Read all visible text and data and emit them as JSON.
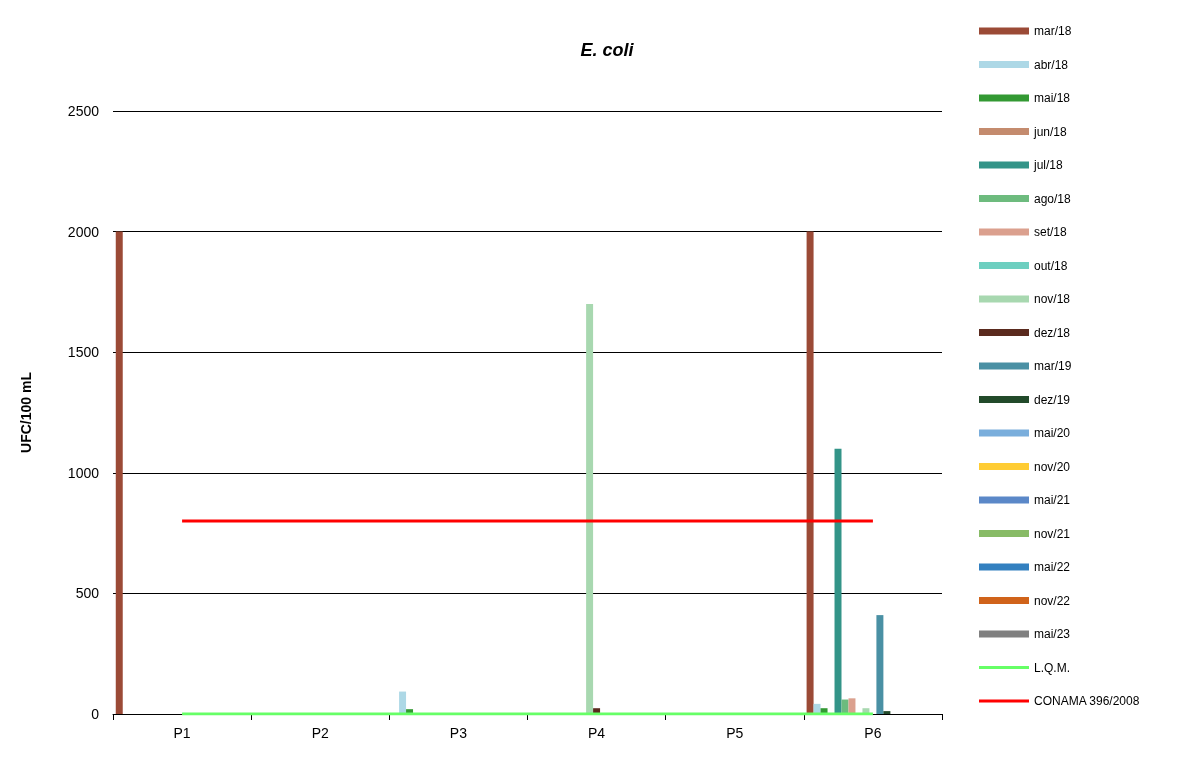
{
  "chart_data": {
    "type": "bar",
    "title": "E. coli",
    "ylabel": "UFC/100 mL",
    "categories": [
      "P1",
      "P2",
      "P3",
      "P4",
      "P5",
      "P6"
    ],
    "ylim": [
      0,
      2500
    ],
    "yticks": [
      0,
      500,
      1000,
      1500,
      2000,
      2500
    ],
    "grid": "y",
    "legend": "right",
    "series": [
      {
        "name": "mar/18",
        "color": "#9b4a36",
        "values": [
          2000,
          null,
          null,
          null,
          null,
          2000
        ]
      },
      {
        "name": "abr/18",
        "color": "#add8e6",
        "values": [
          null,
          null,
          93,
          null,
          null,
          42
        ]
      },
      {
        "name": "mai/18",
        "color": "#339933",
        "values": [
          null,
          null,
          20,
          null,
          null,
          24
        ]
      },
      {
        "name": "jun/18",
        "color": "#c48b6e",
        "values": [
          null,
          null,
          null,
          null,
          null,
          null
        ]
      },
      {
        "name": "jul/18",
        "color": "#339488",
        "values": [
          null,
          null,
          null,
          null,
          null,
          1100
        ]
      },
      {
        "name": "ago/18",
        "color": "#6dbb7e",
        "values": [
          null,
          null,
          null,
          null,
          null,
          60
        ]
      },
      {
        "name": "set/18",
        "color": "#dba08e",
        "values": [
          null,
          null,
          null,
          null,
          null,
          65
        ]
      },
      {
        "name": "out/18",
        "color": "#6dcfc0",
        "values": [
          null,
          null,
          null,
          null,
          null,
          null
        ]
      },
      {
        "name": "nov/18",
        "color": "#a8d8b0",
        "values": [
          null,
          null,
          null,
          1700,
          null,
          24
        ]
      },
      {
        "name": "dez/18",
        "color": "#5a2a1e",
        "values": [
          null,
          null,
          null,
          24,
          null,
          null
        ]
      },
      {
        "name": "mar/19",
        "color": "#4a90a4",
        "values": [
          null,
          null,
          null,
          null,
          null,
          410
        ]
      },
      {
        "name": "dez/19",
        "color": "#224a2a",
        "values": [
          null,
          null,
          null,
          null,
          null,
          12
        ]
      },
      {
        "name": "mai/20",
        "color": "#7aaedc",
        "values": [
          null,
          null,
          null,
          null,
          null,
          null
        ]
      },
      {
        "name": "nov/20",
        "color": "#ffcc33",
        "values": [
          null,
          null,
          null,
          null,
          null,
          null
        ]
      },
      {
        "name": "mai/21",
        "color": "#5b88c8",
        "values": [
          null,
          null,
          null,
          null,
          null,
          null
        ]
      },
      {
        "name": "nov/21",
        "color": "#88bb66",
        "values": [
          null,
          null,
          null,
          null,
          null,
          null
        ]
      },
      {
        "name": "mai/22",
        "color": "#3380c0",
        "values": [
          null,
          null,
          null,
          null,
          null,
          null
        ]
      },
      {
        "name": "nov/22",
        "color": "#d0631a",
        "values": [
          null,
          null,
          null,
          null,
          null,
          null
        ]
      },
      {
        "name": "mai/23",
        "color": "#808080",
        "values": [
          null,
          null,
          null,
          null,
          null,
          null
        ]
      },
      {
        "name": "L.Q.M.",
        "type": "line",
        "color": "#66ff66",
        "values": [
          0,
          0,
          0,
          0,
          0,
          0
        ]
      },
      {
        "name": "CONAMA 396/2008",
        "type": "line",
        "color": "#ff0000",
        "values": [
          800,
          800,
          800,
          800,
          800,
          800
        ]
      }
    ]
  }
}
